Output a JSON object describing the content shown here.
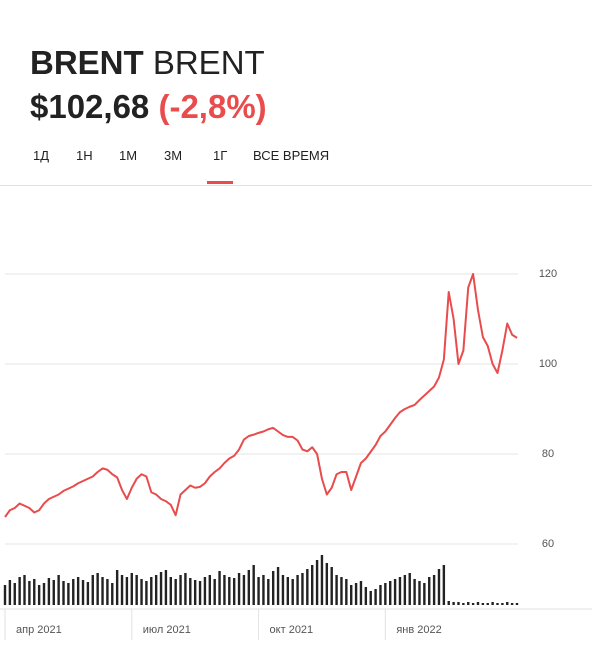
{
  "header": {
    "ticker": "BRENT",
    "name": "BRENT",
    "price": "$102,68",
    "change": "(-2,8%)"
  },
  "tabs": [
    "1Д",
    "1Н",
    "1М",
    "3М",
    "1Г",
    "ВСЕ ВРЕМЯ"
  ],
  "selected_tab": "1Г",
  "chart_data": {
    "type": "line",
    "color": "#e84c4c",
    "volume_color": "#222222",
    "categories": [
      "апр 2021",
      null,
      null,
      null,
      null,
      null,
      null,
      null,
      null,
      null,
      null,
      null,
      null,
      null,
      null,
      null,
      null,
      null,
      null,
      null,
      null,
      null,
      null,
      null,
      null,
      null,
      "июл 2021",
      null,
      null,
      null,
      null,
      null,
      null,
      null,
      null,
      null,
      null,
      null,
      null,
      null,
      null,
      null,
      null,
      null,
      null,
      null,
      null,
      null,
      null,
      null,
      null,
      null,
      "окт 2021",
      null,
      null,
      null,
      null,
      null,
      null,
      null,
      null,
      null,
      null,
      null,
      null,
      null,
      null,
      null,
      null,
      null,
      null,
      null,
      null,
      null,
      null,
      null,
      null,
      null,
      "янв 2022",
      null,
      null,
      null,
      null,
      null,
      null,
      null,
      null,
      null,
      null,
      null,
      null,
      null,
      null,
      null,
      null,
      null,
      null,
      null,
      null,
      null,
      null,
      null,
      null,
      null,
      null,
      null
    ],
    "values": [
      66,
      67.5,
      68,
      69,
      68.5,
      68,
      67,
      67.5,
      69,
      70,
      70.5,
      71,
      71.8,
      72.3,
      72.8,
      73.5,
      74,
      74.5,
      75,
      76,
      76.8,
      76.5,
      75.5,
      74.8,
      72,
      70,
      72.5,
      74.5,
      75.5,
      75,
      71.5,
      71,
      70,
      69.5,
      68.7,
      66.4,
      71,
      72,
      73,
      72.5,
      72.7,
      73.5,
      75,
      76,
      76.8,
      78,
      79,
      79.6,
      81,
      83.2,
      84,
      84.3,
      84.7,
      85,
      85.5,
      85.8,
      85,
      84.2,
      83.8,
      83.8,
      83,
      81,
      80.6,
      81.5,
      80,
      74.5,
      71,
      72.5,
      75.5,
      76,
      76,
      72,
      75,
      78,
      79,
      80.5,
      82,
      84,
      85,
      86.5,
      88,
      89.3,
      90,
      90.5,
      90.9,
      92,
      93,
      94,
      95,
      97,
      101,
      116,
      110,
      100,
      103,
      117,
      120,
      112,
      106,
      104,
      100,
      98,
      103,
      109,
      106.5,
      105.8
    ],
    "volume": [
      20,
      25,
      22,
      28,
      30,
      24,
      26,
      20,
      22,
      27,
      25,
      30,
      24,
      22,
      26,
      28,
      25,
      23,
      30,
      32,
      28,
      26,
      22,
      35,
      30,
      28,
      32,
      30,
      26,
      24,
      28,
      30,
      33,
      35,
      28,
      26,
      30,
      32,
      27,
      25,
      24,
      28,
      30,
      26,
      34,
      30,
      28,
      27,
      32,
      30,
      35,
      40,
      28,
      30,
      26,
      34,
      38,
      30,
      28,
      26,
      30,
      32,
      36,
      40,
      45,
      50,
      42,
      38,
      30,
      28,
      26,
      20,
      22,
      24,
      18,
      14,
      16,
      20,
      22,
      24,
      26,
      28,
      30,
      32,
      26,
      24,
      22,
      28,
      30,
      36,
      40,
      4,
      3,
      3,
      2,
      3,
      2,
      3,
      2,
      2,
      3,
      2,
      2,
      3,
      2,
      2
    ],
    "ylim": [
      60,
      125
    ],
    "yticks": [
      60,
      80,
      100,
      120
    ],
    "y2lim": [
      0,
      50
    ],
    "grid": true
  }
}
